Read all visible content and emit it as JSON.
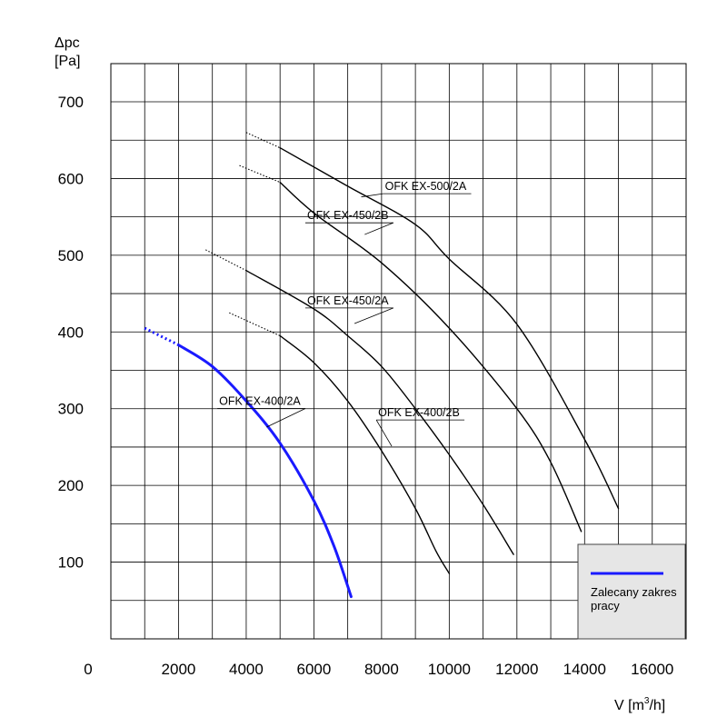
{
  "chart_data": {
    "type": "line",
    "title": "",
    "xlabel": "V [m³/h]",
    "xlabel_prefix": "V [m",
    "xlabel_sup": "3",
    "xlabel_suffix": "/h]",
    "ylabel": "Δpc [Pa]",
    "ylabel_line1": "Δpc",
    "ylabel_line2": "[Pa]",
    "xlim": [
      0,
      17000
    ],
    "ylim": [
      0,
      700
    ],
    "grid": true,
    "x_ticks": [
      {
        "value": 0,
        "label": "0"
      },
      {
        "value": 2000,
        "label": "2000"
      },
      {
        "value": 4000,
        "label": "4000"
      },
      {
        "value": 6000,
        "label": "6000"
      },
      {
        "value": 8000,
        "label": "8000"
      },
      {
        "value": 10000,
        "label": "10000"
      },
      {
        "value": 12000,
        "label": "12000"
      },
      {
        "value": 14000,
        "label": "14000"
      },
      {
        "value": 16000,
        "label": "16000"
      }
    ],
    "y_ticks": [
      {
        "value": 100,
        "label": "100"
      },
      {
        "value": 200,
        "label": "200"
      },
      {
        "value": 300,
        "label": "300"
      },
      {
        "value": 400,
        "label": "400"
      },
      {
        "value": 500,
        "label": "500"
      },
      {
        "value": 600,
        "label": "600"
      },
      {
        "value": 700,
        "label": "700"
      }
    ],
    "series": [
      {
        "name": "OFK EX-400/2A",
        "color": "#1a1aff",
        "highlighted": true,
        "dotted": [
          [
            1000,
            405
          ],
          [
            2000,
            383
          ]
        ],
        "points": [
          [
            2000,
            383
          ],
          [
            3000,
            355
          ],
          [
            4000,
            310
          ],
          [
            5000,
            255
          ],
          [
            6000,
            180
          ],
          [
            6600,
            120
          ],
          [
            7100,
            55
          ]
        ]
      },
      {
        "name": "OFK EX-400/2B",
        "color": "#000000",
        "highlighted": false,
        "dotted": [
          [
            3500,
            425
          ],
          [
            5000,
            395
          ]
        ],
        "points": [
          [
            5000,
            395
          ],
          [
            6000,
            360
          ],
          [
            7000,
            310
          ],
          [
            8000,
            245
          ],
          [
            9000,
            170
          ],
          [
            9600,
            115
          ],
          [
            10000,
            85
          ]
        ]
      },
      {
        "name": "OFK EX-450/2A",
        "color": "#000000",
        "highlighted": false,
        "dotted": [
          [
            2800,
            507
          ],
          [
            4000,
            480
          ]
        ],
        "points": [
          [
            4000,
            480
          ],
          [
            6000,
            430
          ],
          [
            7000,
            395
          ],
          [
            8000,
            355
          ],
          [
            9000,
            300
          ],
          [
            10000,
            240
          ],
          [
            11000,
            175
          ],
          [
            11900,
            110
          ]
        ]
      },
      {
        "name": "OFK EX-450/2B",
        "color": "#000000",
        "highlighted": false,
        "dotted": [
          [
            3800,
            617
          ],
          [
            5000,
            595
          ]
        ],
        "points": [
          [
            5000,
            595
          ],
          [
            6000,
            555
          ],
          [
            8000,
            490
          ],
          [
            10000,
            405
          ],
          [
            12000,
            300
          ],
          [
            13000,
            230
          ],
          [
            13900,
            140
          ]
        ]
      },
      {
        "name": "OFK EX-500/2A",
        "color": "#000000",
        "highlighted": false,
        "dotted": [
          [
            4000,
            660
          ],
          [
            5000,
            640
          ]
        ],
        "points": [
          [
            5000,
            640
          ],
          [
            7000,
            590
          ],
          [
            9000,
            540
          ],
          [
            10000,
            495
          ],
          [
            12000,
            410
          ],
          [
            14000,
            260
          ],
          [
            15000,
            170
          ]
        ]
      }
    ],
    "callouts": [
      {
        "series": "OFK EX-500/2A",
        "label": "OFK EX-500/2A",
        "anchor": [
          7400,
          576
        ],
        "text_at": [
          8100,
          585
        ]
      },
      {
        "series": "OFK EX-450/2B",
        "label": "OFK EX-450/2B",
        "anchor": [
          7500,
          527
        ],
        "text_at": [
          5800,
          547
        ]
      },
      {
        "series": "OFK EX-450/2A",
        "label": "OFK EX-450/2A",
        "anchor": [
          7200,
          411
        ],
        "text_at": [
          5800,
          436
        ]
      },
      {
        "series": "OFK EX-400/2A",
        "label": "OFK EX-400/2A",
        "anchor": [
          4600,
          276
        ],
        "text_at": [
          3200,
          305
        ]
      },
      {
        "series": "OFK EX-400/2B",
        "label": "OFK EX-400/2B",
        "anchor": [
          8300,
          251
        ],
        "text_at": [
          7900,
          290
        ]
      }
    ],
    "legend": {
      "placement": "bottom-right",
      "color": "#1a1aff",
      "text_line1": "Zalecany zakres",
      "text_line2": "pracy"
    }
  }
}
